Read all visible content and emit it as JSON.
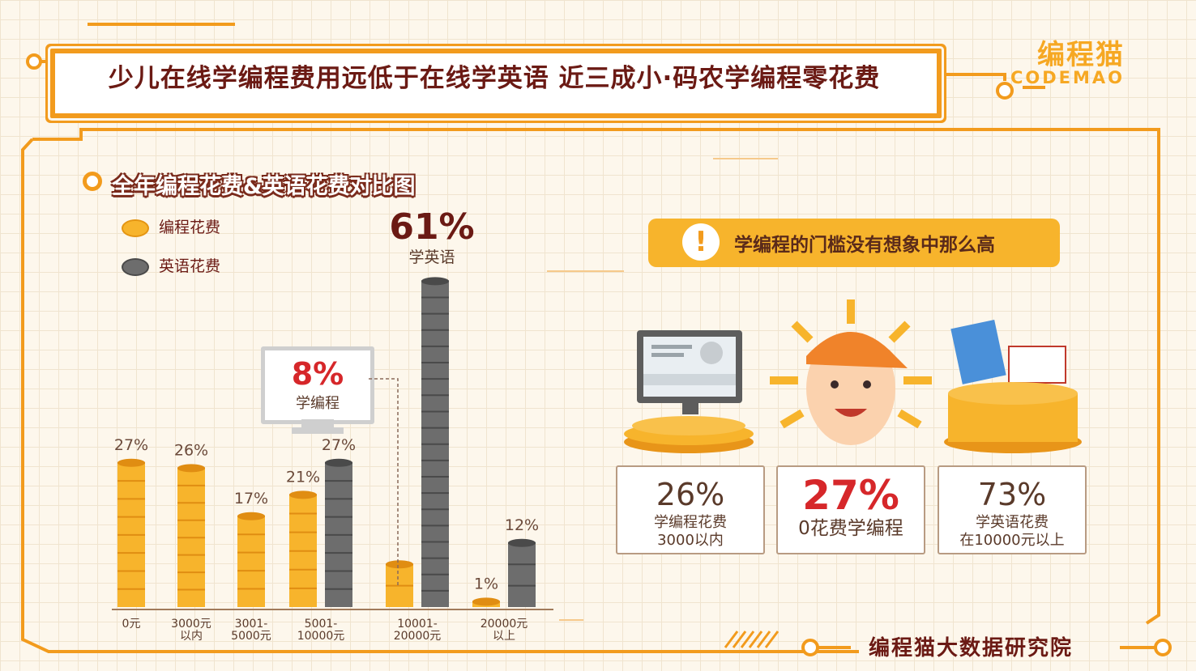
{
  "header": {
    "title": "少儿在线学编程费用远低于在线学英语  近三成小·码农学编程零花费"
  },
  "logo": {
    "cn": "编程猫",
    "en": "CODEMAO"
  },
  "colors": {
    "orange": "#f29b1d",
    "coin_gold": "#f7b42c",
    "coin_gray": "#6d6d6d",
    "accent_red": "#d6272a",
    "dark_brown": "#6b1a14"
  },
  "chart_data": {
    "type": "bar",
    "title": "全年编程花费&英语花费对比图",
    "categories": [
      "0元",
      "3000元以内",
      "3001-5000元",
      "5001-10000元",
      "10001-20000元",
      "20000元以上"
    ],
    "category_lines": [
      [
        "0元"
      ],
      [
        "3000元",
        "以内"
      ],
      [
        "3001-",
        "5000元"
      ],
      [
        "5001-",
        "10000元"
      ],
      [
        "10001-",
        "20000元"
      ],
      [
        "20000元",
        "以上"
      ]
    ],
    "series": [
      {
        "name": "编程花费",
        "values": [
          27,
          26,
          17,
          21,
          8,
          1
        ],
        "labels": [
          "27%",
          "26%",
          "17%",
          "21%",
          "",
          "1%"
        ],
        "color": "#f7b42c"
      },
      {
        "name": "英语花费",
        "values": [
          null,
          null,
          null,
          27,
          61,
          12
        ],
        "labels": [
          "",
          "",
          "",
          "27%",
          "",
          "12%"
        ],
        "color": "#6d6d6d"
      }
    ],
    "ylim": [
      0,
      65
    ],
    "legend": "top-left"
  },
  "callouts": {
    "english": {
      "value": "61%",
      "label": "学英语"
    },
    "coding": {
      "value": "8%",
      "label": "学编程"
    }
  },
  "info": {
    "icon": "exclamation-icon",
    "text": "学编程的门槛没有想象中那么高"
  },
  "cards": [
    {
      "value": "26%",
      "line1": "学编程花费",
      "line2": "3000以内"
    },
    {
      "value": "27%",
      "line1": "0花费学编程",
      "line2": ""
    },
    {
      "value": "73%",
      "line1": "学英语花费",
      "line2": "在10000元以上"
    }
  ],
  "footer": {
    "text": "编程猫大数据研究院"
  }
}
